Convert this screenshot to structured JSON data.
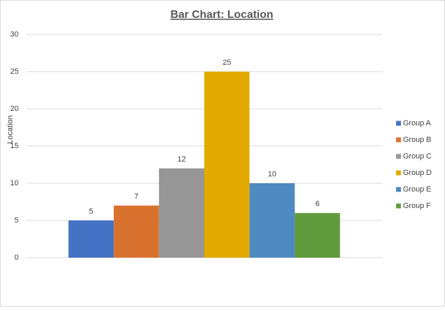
{
  "chart_data": {
    "type": "bar",
    "title": "Bar Chart: Location",
    "y_label": "Location",
    "categories": [
      null
    ],
    "series": [
      {
        "name": "Group A",
        "color": "#4472c4",
        "values": [
          5
        ]
      },
      {
        "name": "Group B",
        "color": "#d9712e",
        "values": [
          7
        ]
      },
      {
        "name": "Group C",
        "color": "#969696",
        "values": [
          12
        ]
      },
      {
        "name": "Group D",
        "color": "#e2aa00",
        "values": [
          25
        ]
      },
      {
        "name": "Group E",
        "color": "#4e8ac1",
        "values": [
          10
        ]
      },
      {
        "name": "Group F",
        "color": "#629b3e",
        "values": [
          6
        ]
      }
    ],
    "ylim": [
      0,
      30
    ],
    "yticks": [
      0,
      5,
      10,
      15,
      20,
      25,
      30
    ],
    "grid": true,
    "legend": "right"
  }
}
